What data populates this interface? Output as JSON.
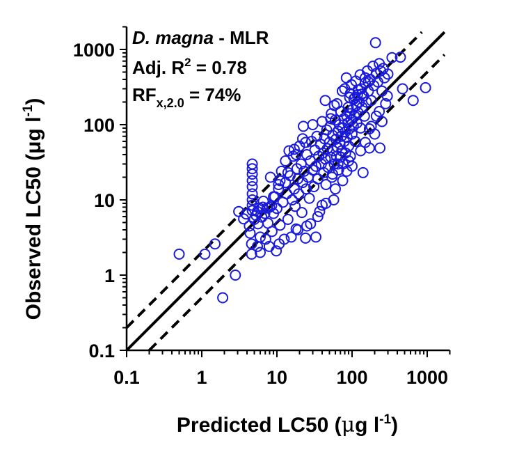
{
  "chart_data": {
    "type": "scatter",
    "title": "",
    "xlabel": "Predicted LC50 (μg l-1)",
    "ylabel": "Observed LC50 (μg l-1)",
    "xlabel_parts": {
      "main": "Predicted LC50 (",
      "unit_mu": "μ",
      "unit_rest": "g l",
      "sup": "-1",
      "close": ")"
    },
    "ylabel_parts": {
      "main": "Observed LC50 (",
      "unit": "μg l",
      "sup": "-1",
      "close": ")"
    },
    "xscale": "log",
    "yscale": "log",
    "xlim": [
      0.1,
      2000
    ],
    "ylim": [
      0.1,
      2000
    ],
    "xticks": [
      0.1,
      1,
      10,
      100,
      1000
    ],
    "yticks": [
      0.1,
      1,
      10,
      100,
      1000
    ],
    "xtick_labels": [
      "0.1",
      "1",
      "10",
      "100",
      "1000"
    ],
    "ytick_labels": [
      "0.1",
      "1",
      "10",
      "100",
      "1000"
    ],
    "grid": false,
    "marker": {
      "shape": "open-circle",
      "color": "#1a1adc"
    },
    "reference_lines": [
      {
        "name": "1:1 line",
        "style": "solid",
        "factor": 1
      },
      {
        "name": "2-fold upper",
        "style": "dashed",
        "factor": 2
      },
      {
        "name": "2-fold lower",
        "style": "dashed",
        "factor": 0.5
      }
    ],
    "annotations": {
      "species": "D. magna",
      "model": " - MLR",
      "r2_prefix": "Adj. R",
      "r2_sup": "2",
      "r2_value": " = 0.78",
      "rf_prefix": "RF",
      "rf_sub": "x,2.0",
      "rf_value": " = 74%"
    },
    "series": [
      {
        "name": "D. magna - MLR",
        "points": [
          [
            0.5,
            1.9
          ],
          [
            1.1,
            1.9
          ],
          [
            1.5,
            2.6
          ],
          [
            1.9,
            0.5
          ],
          [
            2.8,
            1.0
          ],
          [
            3.1,
            7.0
          ],
          [
            3.6,
            5.6
          ],
          [
            3.9,
            6.5
          ],
          [
            4.3,
            4.5
          ],
          [
            4.4,
            3.6
          ],
          [
            4.6,
            2.6
          ],
          [
            4.6,
            1.9
          ],
          [
            4.7,
            30
          ],
          [
            4.7,
            26
          ],
          [
            4.7,
            22
          ],
          [
            4.7,
            18
          ],
          [
            4.7,
            15
          ],
          [
            4.7,
            12
          ],
          [
            4.7,
            10
          ],
          [
            4.7,
            8.5
          ],
          [
            4.7,
            7.2
          ],
          [
            5.0,
            5.5
          ],
          [
            5.3,
            6.2
          ],
          [
            5.5,
            2.4
          ],
          [
            5.6,
            4.8
          ],
          [
            5.8,
            7.8
          ],
          [
            6.0,
            3.2
          ],
          [
            6.3,
            5.9
          ],
          [
            6.0,
            2.0
          ],
          [
            6.6,
            9.6
          ],
          [
            6.9,
            6.6
          ],
          [
            7.1,
            3.0
          ],
          [
            7.4,
            7.8
          ],
          [
            7.6,
            4.9
          ],
          [
            7.9,
            2.4
          ],
          [
            8.2,
            20
          ],
          [
            8.5,
            8.4
          ],
          [
            8.6,
            3.8
          ],
          [
            9.0,
            6.6
          ],
          [
            9.4,
            11
          ],
          [
            9.8,
            2.1
          ],
          [
            10,
            7.7
          ],
          [
            10.5,
            14
          ],
          [
            10.7,
            2.6
          ],
          [
            11,
            4.6
          ],
          [
            11.5,
            24
          ],
          [
            12,
            9.3
          ],
          [
            12.5,
            3.0
          ],
          [
            13,
            17
          ],
          [
            13.5,
            12
          ],
          [
            14,
            5.5
          ],
          [
            14.5,
            45
          ],
          [
            15,
            21
          ],
          [
            15.5,
            3.2
          ],
          [
            16,
            10
          ],
          [
            16.5,
            38
          ],
          [
            17,
            14
          ],
          [
            17.5,
            8.2
          ],
          [
            18,
            4.1
          ],
          [
            18.5,
            26
          ],
          [
            19,
            19
          ],
          [
            19.5,
            12
          ],
          [
            20,
            52
          ],
          [
            21,
            30
          ],
          [
            21.5,
            6.8
          ],
          [
            22,
            17
          ],
          [
            22.5,
            95
          ],
          [
            23,
            24
          ],
          [
            24,
            3.1
          ],
          [
            24.5,
            14
          ],
          [
            25,
            40
          ],
          [
            26,
            20
          ],
          [
            27,
            10.5
          ],
          [
            28,
            33
          ],
          [
            29,
            60
          ],
          [
            30,
            25
          ],
          [
            31,
            15
          ],
          [
            32,
            46
          ],
          [
            33,
            28
          ],
          [
            34,
            70
          ],
          [
            35,
            19
          ],
          [
            36,
            38
          ],
          [
            37,
            7.0
          ],
          [
            38,
            55
          ],
          [
            39,
            30
          ],
          [
            40,
            110
          ],
          [
            41,
            42
          ],
          [
            42,
            23
          ],
          [
            43,
            65
          ],
          [
            44,
            35
          ],
          [
            45,
            16
          ],
          [
            46,
            85
          ],
          [
            47,
            48
          ],
          [
            48,
            27
          ],
          [
            50,
            58
          ],
          [
            51,
            95
          ],
          [
            52,
            37
          ],
          [
            53,
            140
          ],
          [
            54,
            20
          ],
          [
            55,
            72
          ],
          [
            56,
            45
          ],
          [
            57,
            10
          ],
          [
            58,
            30
          ],
          [
            60,
            115
          ],
          [
            61,
            64
          ],
          [
            62,
            38
          ],
          [
            63,
            190
          ],
          [
            64,
            50
          ],
          [
            65,
            82
          ],
          [
            66,
            25
          ],
          [
            68,
            100
          ],
          [
            69,
            55
          ],
          [
            70,
            37
          ],
          [
            71,
            150
          ],
          [
            72,
            70
          ],
          [
            73,
            45
          ],
          [
            74,
            280
          ],
          [
            75,
            90
          ],
          [
            76,
            30
          ],
          [
            78,
            120
          ],
          [
            79,
            60
          ],
          [
            80,
            300
          ],
          [
            81,
            80
          ],
          [
            82,
            42
          ],
          [
            84,
            420
          ],
          [
            85,
            130
          ],
          [
            86,
            68
          ],
          [
            88,
            105
          ],
          [
            89,
            170
          ],
          [
            90,
            52
          ],
          [
            92,
            88
          ],
          [
            93,
            230
          ],
          [
            94,
            140
          ],
          [
            95,
            38
          ],
          [
            97,
            115
          ],
          [
            98,
            340
          ],
          [
            100,
            75
          ],
          [
            102,
            160
          ],
          [
            104,
            95
          ],
          [
            106,
            220
          ],
          [
            108,
            130
          ],
          [
            110,
            60
          ],
          [
            112,
            380
          ],
          [
            114,
            180
          ],
          [
            116,
            105
          ],
          [
            118,
            250
          ],
          [
            120,
            145
          ],
          [
            125,
            200
          ],
          [
            128,
            460
          ],
          [
            130,
            90
          ],
          [
            133,
            300
          ],
          [
            136,
            170
          ],
          [
            140,
            23
          ],
          [
            142,
            240
          ],
          [
            146,
            130
          ],
          [
            150,
            360
          ],
          [
            155,
            200
          ],
          [
            160,
            520
          ],
          [
            165,
            280
          ],
          [
            170,
            88
          ],
          [
            170,
            49
          ],
          [
            175,
            400
          ],
          [
            180,
            210
          ],
          [
            190,
            600
          ],
          [
            195,
            330
          ],
          [
            205,
            1230
          ],
          [
            210,
            480
          ],
          [
            220,
            370
          ],
          [
            230,
            650
          ],
          [
            235,
            49
          ],
          [
            240,
            520
          ],
          [
            250,
            280
          ],
          [
            260,
            560
          ],
          [
            270,
            420
          ],
          [
            295,
            240
          ],
          [
            300,
            470
          ],
          [
            340,
            780
          ],
          [
            440,
            790
          ],
          [
            470,
            300
          ],
          [
            650,
            210
          ],
          [
            950,
            310
          ],
          [
            71,
            37
          ],
          [
            150,
            420
          ],
          [
            165,
            370
          ],
          [
            120,
            290
          ],
          [
            95,
            260
          ],
          [
            110,
            230
          ],
          [
            135,
            255
          ],
          [
            58,
            180
          ],
          [
            52,
            120
          ],
          [
            44,
            210
          ],
          [
            30,
            100
          ],
          [
            22,
            65
          ],
          [
            24,
            58
          ],
          [
            17,
            47
          ],
          [
            18,
            40
          ],
          [
            14,
            23
          ],
          [
            13,
            33
          ],
          [
            10.5,
            16
          ],
          [
            11,
            18
          ],
          [
            9,
            11
          ],
          [
            8,
            8
          ],
          [
            6.5,
            8
          ],
          [
            5.5,
            7
          ],
          [
            45,
            9
          ],
          [
            40,
            8.5
          ],
          [
            28,
            4.8
          ],
          [
            33,
            3.2
          ],
          [
            35,
            6.0
          ],
          [
            25,
            4.5
          ],
          [
            19,
            4.0
          ],
          [
            60,
            14
          ],
          [
            55,
            22
          ],
          [
            75,
            18
          ],
          [
            85,
            24
          ],
          [
            100,
            28
          ],
          [
            65,
            30
          ],
          [
            90,
            33
          ],
          [
            130,
            45
          ],
          [
            150,
            58
          ],
          [
            200,
            75
          ],
          [
            180,
            95
          ],
          [
            250,
            110
          ],
          [
            230,
            150
          ],
          [
            210,
            130
          ],
          [
            280,
            190
          ]
        ]
      }
    ]
  }
}
